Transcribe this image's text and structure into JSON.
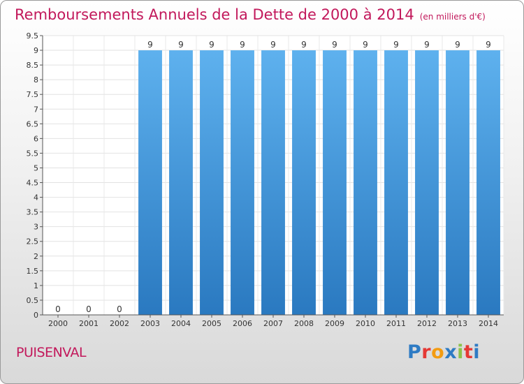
{
  "header": {
    "title": "Remboursements Annuels de la Dette de 2000 à 2014",
    "unit": "(en milliers d'€)"
  },
  "footer": {
    "commune": "PUISENVAL",
    "logo_letters": [
      "P",
      "r",
      "o",
      "x",
      "i",
      "t",
      "i"
    ],
    "logo_colors": [
      "#2e7bc4",
      "#e53935",
      "#f39c12",
      "#2e7bc4",
      "#8bc34a",
      "#e53935",
      "#2e7bc4"
    ]
  },
  "chart_data": {
    "type": "bar",
    "title": "Remboursements Annuels de la Dette de 2000 à 2014",
    "xlabel": "",
    "ylabel": "(en milliers d'€)",
    "categories": [
      "2000",
      "2001",
      "2002",
      "2003",
      "2004",
      "2005",
      "2006",
      "2007",
      "2008",
      "2009",
      "2010",
      "2011",
      "2012",
      "2013",
      "2014"
    ],
    "values": [
      0,
      0,
      0,
      9,
      9,
      9,
      9,
      9,
      9,
      9,
      9,
      9,
      9,
      9,
      9
    ],
    "data_labels": [
      "0",
      "0",
      "0",
      "9",
      "9",
      "9",
      "9",
      "9",
      "9",
      "9",
      "9",
      "9",
      "9",
      "9",
      "9"
    ],
    "ylim": [
      0,
      9.5
    ],
    "yticks": [
      0,
      0.5,
      1,
      1.5,
      2,
      2.5,
      3,
      3.5,
      4,
      4.5,
      5,
      5.5,
      6,
      6.5,
      7,
      7.5,
      8,
      8.5,
      9,
      9.5
    ],
    "ytick_labels": [
      "0",
      "0.5",
      "1",
      "1.5",
      "2",
      "2.5",
      "3",
      "3.5",
      "4",
      "4.5",
      "5",
      "5.5",
      "6",
      "6.5",
      "7",
      "7.5",
      "8",
      "8.5",
      "9",
      "9.5"
    ],
    "grid": true,
    "bar_color": "#3a8fd8"
  }
}
